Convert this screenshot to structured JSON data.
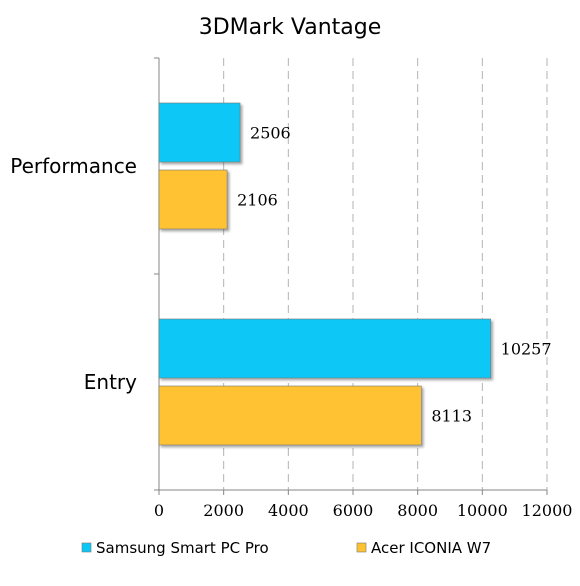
{
  "chart_data": {
    "type": "bar",
    "orientation": "horizontal",
    "title": "3DMark Vantage",
    "categories": [
      "Performance",
      "Entry"
    ],
    "series": [
      {
        "name": "Samsung Smart PC Pro",
        "values": [
          2506,
          10257
        ],
        "color": "#09c8f6"
      },
      {
        "name": "Acer ICONIA W7",
        "values": [
          2106,
          8113
        ],
        "color": "#fec230"
      }
    ],
    "xlim": [
      0,
      12000
    ],
    "xticks": [
      0,
      2000,
      4000,
      6000,
      8000,
      10000,
      12000
    ],
    "grid": "vertical dashed",
    "legend_position": "bottom",
    "xlabel": "",
    "ylabel": ""
  }
}
